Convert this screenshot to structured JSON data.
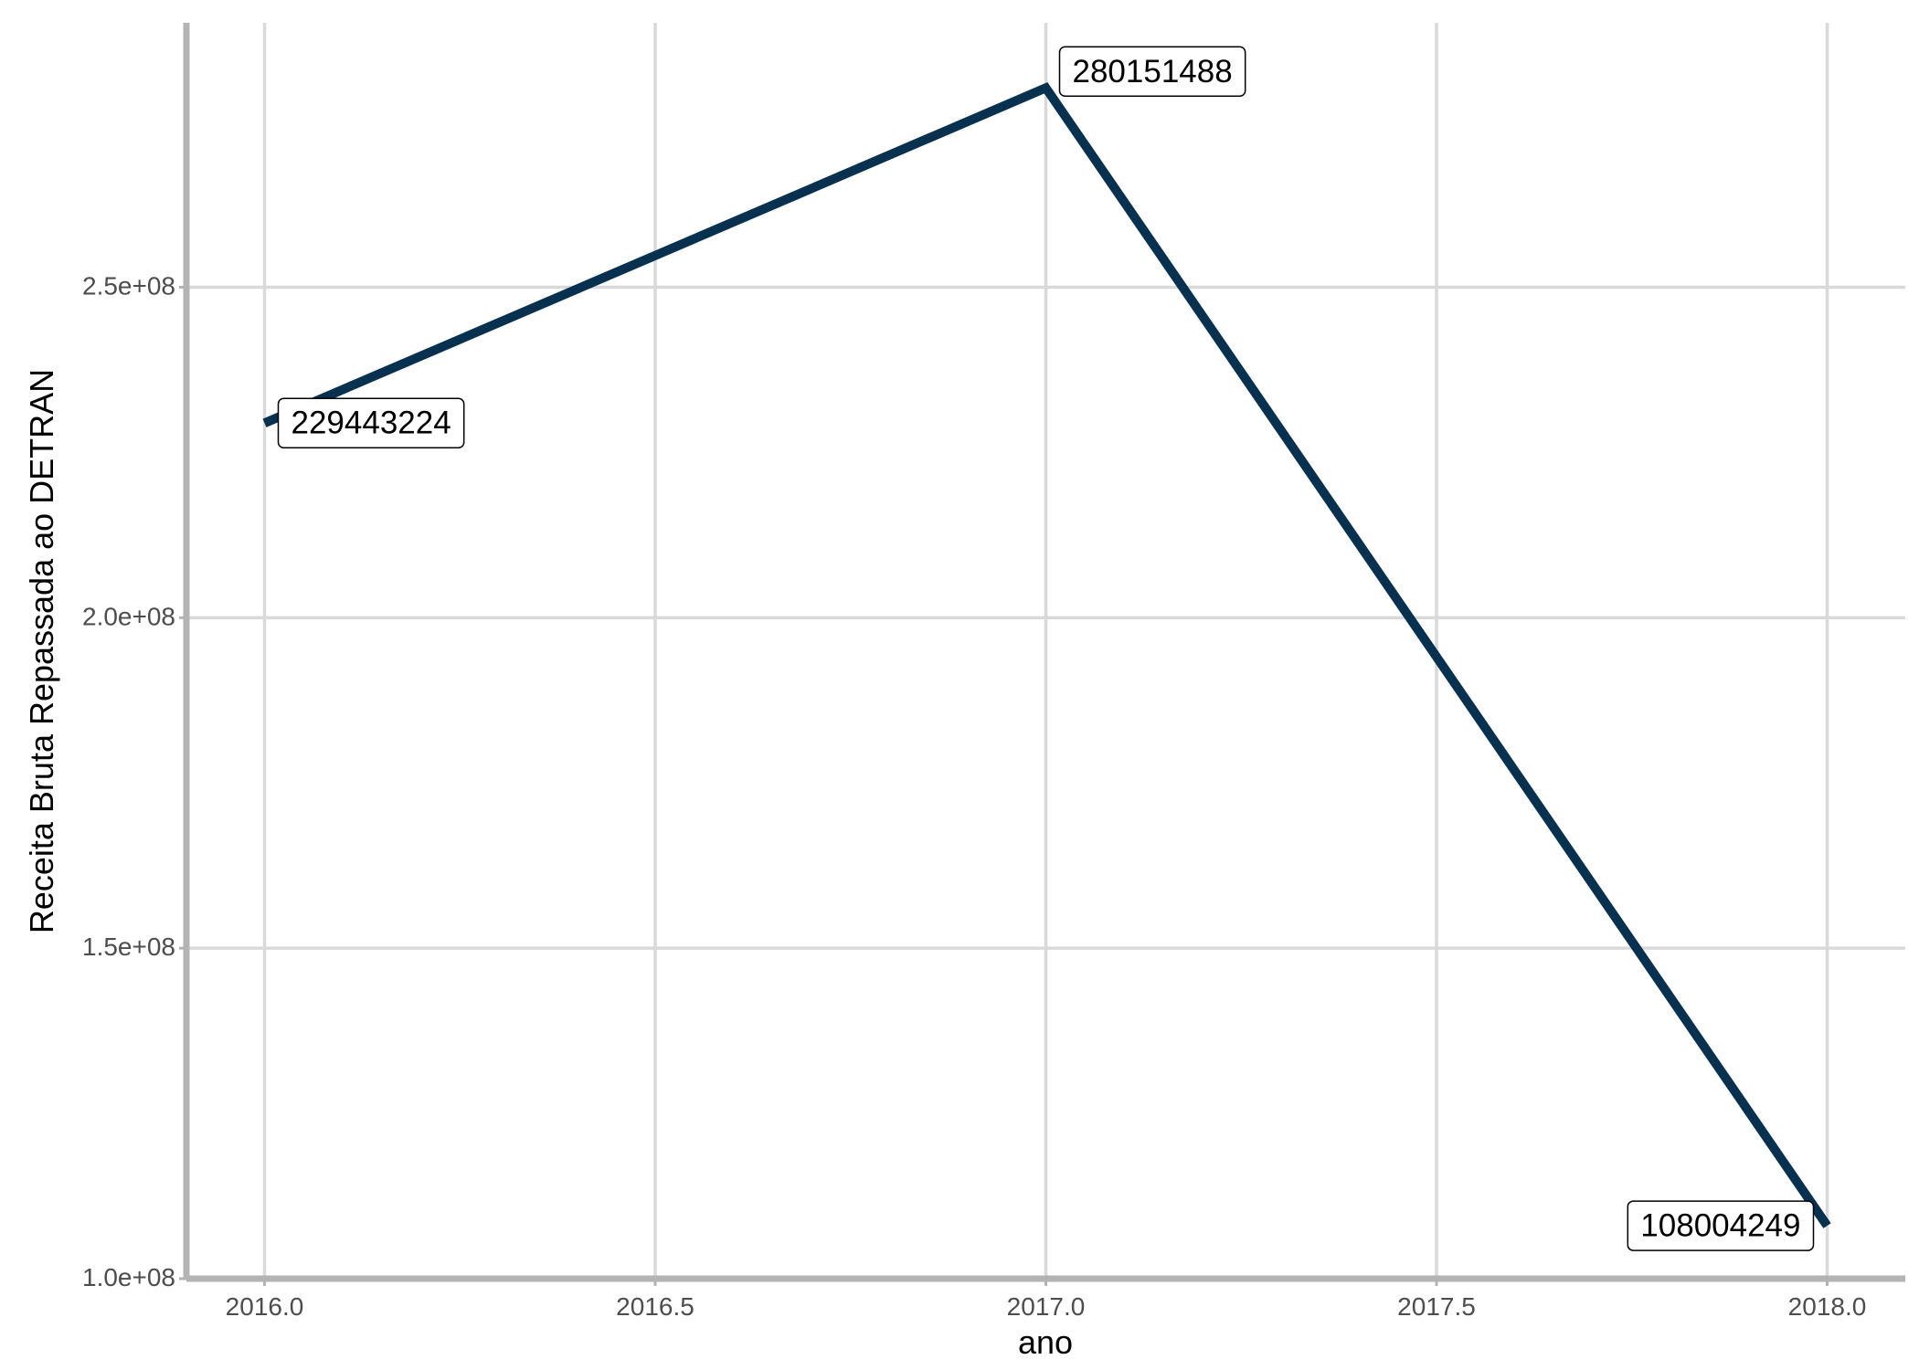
{
  "chart_data": {
    "type": "line",
    "x": [
      2016.0,
      2017.0,
      2018.0
    ],
    "series": [
      {
        "values": [
          229443224,
          280151488,
          108004249
        ],
        "color": "#08304f"
      }
    ],
    "data_labels": [
      "229443224",
      "280151488",
      "108004249"
    ],
    "xlabel": "ano",
    "ylabel": "Receita Bruta Repassada ao DETRAN",
    "x_ticks": [
      2016.0,
      2016.5,
      2017.0,
      2017.5,
      2018.0
    ],
    "x_tick_labels": [
      "2016.0",
      "2016.5",
      "2017.0",
      "2017.5",
      "2018.0"
    ],
    "y_ticks": [
      100000000,
      150000000,
      200000000,
      250000000
    ],
    "y_tick_labels": [
      "1.0e+08",
      "1.5e+08",
      "2.0e+08",
      "2.5e+08"
    ],
    "xlim": [
      2015.9,
      2018.1
    ],
    "ylim": [
      100000000,
      290000000
    ],
    "grid": true,
    "legend": "none"
  }
}
